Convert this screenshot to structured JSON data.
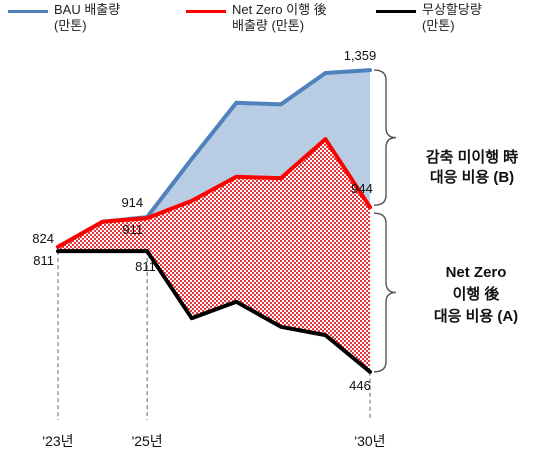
{
  "legend": [
    {
      "label": "BAU 배출량",
      "sub": "(만톤)",
      "color": "#4f81bd"
    },
    {
      "label": "Net Zero 이행 後",
      "sub": "배출량 (만톤)",
      "color": "#ff0000"
    },
    {
      "label": "무상할당량",
      "sub": "(만톤)",
      "color": "#000000"
    }
  ],
  "annotations": {
    "b": {
      "line1": "감축 미이행 時",
      "line2": "대응 비용 (B)"
    },
    "a": {
      "line1": "Net Zero",
      "line2": "이행 後",
      "line3": "대응 비용 (A)"
    }
  },
  "chart_data": {
    "type": "area",
    "x_tick_labels": [
      "'23년",
      "'25년",
      "'30년"
    ],
    "x": [
      2023,
      2024,
      2025,
      2026,
      2027,
      2028,
      2029,
      2030
    ],
    "ylim": [
      300,
      1450
    ],
    "series": [
      {
        "name": "BAU 배출량 (만톤)",
        "color": "#4f81bd",
        "values": [
          824,
          900,
          914,
          1090,
          1260,
          1255,
          1350,
          1359
        ]
      },
      {
        "name": "Net Zero 이행 後 배출량 (만톤)",
        "color": "#ff0000",
        "values": [
          824,
          900,
          911,
          963,
          1036,
          1032,
          1150,
          944
        ]
      },
      {
        "name": "무상할당량 (만톤)",
        "color": "#000000",
        "values": [
          811,
          811,
          811,
          608,
          658,
          582,
          557,
          446
        ]
      }
    ],
    "data_labels": [
      {
        "text": "824",
        "series": 1,
        "index": 0
      },
      {
        "text": "811",
        "series": 2,
        "index": 0
      },
      {
        "text": "914",
        "series": 0,
        "index": 2
      },
      {
        "text": "911",
        "series": 1,
        "index": 2
      },
      {
        "text": "811",
        "series": 2,
        "index": 2
      },
      {
        "text": "1,359",
        "series": 0,
        "index": 7
      },
      {
        "text": "944",
        "series": 1,
        "index": 7
      },
      {
        "text": "446",
        "series": 2,
        "index": 7
      }
    ],
    "regions": [
      {
        "name": "감축 미이행 時 대응 비용 (B)",
        "between": [
          0,
          1
        ],
        "fill": "#b8cce4"
      },
      {
        "name": "Net Zero 이행 後 대응 비용 (A)",
        "between": [
          1,
          2
        ],
        "pattern": "red-dots"
      }
    ],
    "grid": false
  }
}
